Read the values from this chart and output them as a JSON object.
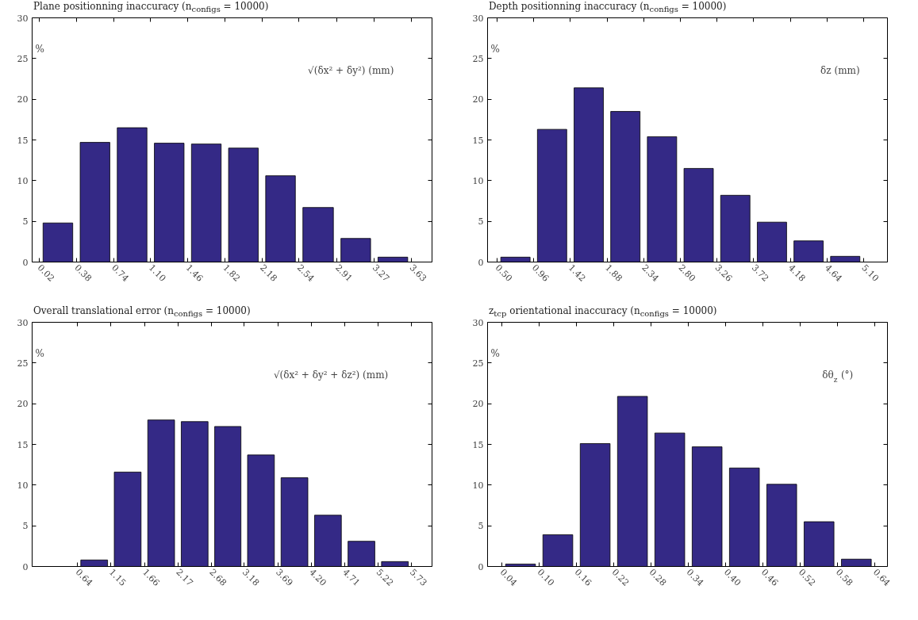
{
  "chart_data": [
    {
      "type": "histogram",
      "title": "Plane positionning inaccuracy (n$_{configs}$ = 10000)",
      "xlabel": "√(δx² + δy²) (mm)",
      "ylabel": "%",
      "bins": [
        0.02,
        0.38,
        0.74,
        1.1,
        1.46,
        1.82,
        2.18,
        2.54,
        2.91,
        3.27,
        3.63
      ],
      "xticks": [
        {
          "value": 0.02,
          "label": "0.02"
        },
        {
          "value": 0.38,
          "label": "0.38"
        },
        {
          "value": 0.74,
          "label": "0.74"
        },
        {
          "value": 1.1,
          "label": "1.10"
        },
        {
          "value": 1.46,
          "label": "1.46"
        },
        {
          "value": 1.82,
          "label": "1.82"
        },
        {
          "value": 2.18,
          "label": "2.18"
        },
        {
          "value": 2.54,
          "label": "2.54"
        },
        {
          "value": 2.91,
          "label": "2.91"
        },
        {
          "value": 3.27,
          "label": "3.27"
        },
        {
          "value": 3.63,
          "label": "3.63"
        }
      ],
      "values": [
        4.8,
        14.7,
        16.5,
        14.6,
        14.5,
        14.0,
        10.6,
        6.7,
        2.9,
        0.6
      ],
      "color": "#342986",
      "xlim": [
        -0.05,
        3.83
      ],
      "ylim": [
        0,
        30
      ],
      "yticks": [
        0,
        5,
        10,
        15,
        20,
        25,
        30
      ],
      "grid": false
    },
    {
      "type": "histogram",
      "title": "Depth positionning inaccuracy (n$_{configs}$ = 10000)",
      "xlabel": "δz (mm)",
      "ylabel": "%",
      "bins": [
        0.5,
        0.96,
        1.42,
        1.88,
        2.34,
        2.8,
        3.26,
        3.72,
        4.18,
        4.64,
        5.1
      ],
      "xticks": [
        {
          "value": 0.5,
          "label": "0.50"
        },
        {
          "value": 0.96,
          "label": "0.96"
        },
        {
          "value": 1.42,
          "label": "1.42"
        },
        {
          "value": 1.88,
          "label": "1.88"
        },
        {
          "value": 2.34,
          "label": "2.34"
        },
        {
          "value": 2.8,
          "label": "2.80"
        },
        {
          "value": 3.26,
          "label": "3.26"
        },
        {
          "value": 3.72,
          "label": "3.72"
        },
        {
          "value": 4.18,
          "label": "4.18"
        },
        {
          "value": 4.64,
          "label": "4.64"
        },
        {
          "value": 5.1,
          "label": "5.10"
        }
      ],
      "values": [
        0.6,
        16.3,
        21.4,
        18.5,
        15.4,
        11.5,
        8.2,
        4.9,
        2.6,
        0.7
      ],
      "color": "#342986",
      "xlim": [
        0.38,
        5.4
      ],
      "ylim": [
        0,
        30
      ],
      "yticks": [
        0,
        5,
        10,
        15,
        20,
        25,
        30
      ],
      "grid": false
    },
    {
      "type": "histogram",
      "title": "Overall translational error (n$_{configs}$ = 10000)",
      "xlabel": "√(δx² + δy² + δz²) (mm)",
      "ylabel": "%",
      "bins": [
        0.64,
        1.15,
        1.66,
        2.17,
        2.68,
        3.18,
        3.69,
        4.2,
        4.71,
        5.22,
        5.73
      ],
      "xticks": [
        0.64,
        1.15,
        1.66,
        2.17,
        2.68,
        3.18,
        3.69,
        {
          "value": 4.2,
          "label": "4.20"
        },
        4.71,
        5.22,
        5.73
      ],
      "values": [
        0.8,
        11.6,
        18.0,
        17.8,
        17.2,
        13.7,
        10.9,
        6.3,
        3.1,
        0.6
      ],
      "color": "#342986",
      "xlim": [
        -0.05,
        6.04
      ],
      "ylim": [
        0,
        30
      ],
      "yticks": [
        0,
        5,
        10,
        15,
        20,
        25,
        30
      ],
      "grid": false
    },
    {
      "type": "histogram",
      "title": "z$_{tcp}$ orientational inaccuracy (n$_{configs}$ = 10000)",
      "xlabel": "δθ$_{z}$ (°)",
      "ylabel": "%",
      "bins": [
        0.04,
        0.1,
        0.16,
        0.22,
        0.28,
        0.34,
        0.4,
        0.46,
        0.52,
        0.58,
        0.64
      ],
      "xticks": [
        0.04,
        {
          "value": 0.1,
          "label": "0.10"
        },
        0.16,
        0.22,
        0.28,
        0.34,
        {
          "value": 0.4,
          "label": "0.40"
        },
        0.46,
        0.52,
        0.58,
        0.64
      ],
      "values": [
        0.3,
        3.9,
        15.1,
        20.9,
        16.4,
        14.7,
        12.1,
        10.1,
        5.5,
        0.9
      ],
      "color": "#342986",
      "xlim": [
        0.017,
        0.66
      ],
      "ylim": [
        0,
        30
      ],
      "yticks": [
        0,
        5,
        10,
        15,
        20,
        25,
        30
      ],
      "grid": false
    }
  ]
}
